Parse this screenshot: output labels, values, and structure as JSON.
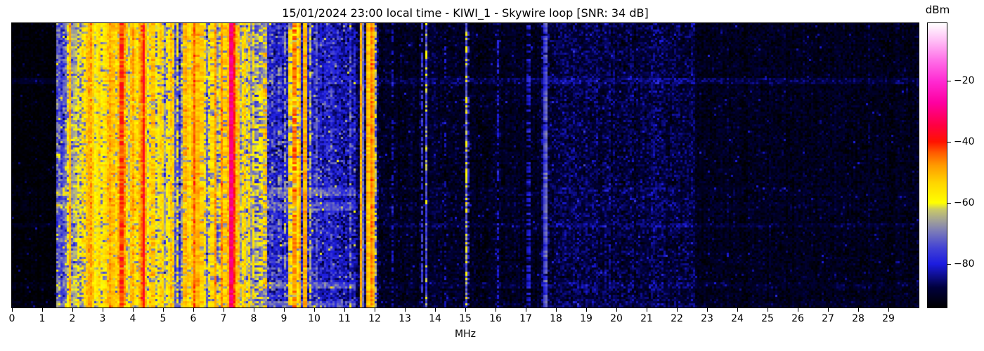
{
  "chart_data": {
    "type": "heatmap",
    "title": "15/01/2024 23:00 local time - KIWI_1 - Skywire loop [SNR: 34 dB]",
    "xlabel": "MHz",
    "x_range": [
      0,
      30
    ],
    "x_ticks": [
      "0",
      "1",
      "2",
      "3",
      "4",
      "5",
      "6",
      "7",
      "8",
      "9",
      "10",
      "11",
      "12",
      "13",
      "14",
      "15",
      "16",
      "17",
      "18",
      "19",
      "20",
      "21",
      "22",
      "23",
      "24",
      "25",
      "26",
      "27",
      "28",
      "29"
    ],
    "x_tick_values": [
      0,
      1,
      2,
      3,
      4,
      5,
      6,
      7,
      8,
      9,
      10,
      11,
      12,
      13,
      14,
      15,
      16,
      17,
      18,
      19,
      20,
      21,
      22,
      23,
      24,
      25,
      26,
      27,
      28,
      29
    ],
    "y_axis": "time (waterfall rows, no labels shown)",
    "value_unit": "dBm",
    "value_range": [
      -94.25,
      -1.15
    ],
    "colorbar": {
      "label": "dBm",
      "tick_labels": [
        "−20",
        "−40",
        "−60",
        "−80"
      ],
      "tick_values": [
        -20,
        -40,
        -60,
        -80
      ],
      "stops": [
        {
          "t": 0.0,
          "c": "#000000"
        },
        {
          "t": 0.07,
          "c": "#00003c"
        },
        {
          "t": 0.153,
          "c": "#1c1cdf"
        },
        {
          "t": 0.21,
          "c": "#4343d4"
        },
        {
          "t": 0.27,
          "c": "#7d7db7"
        },
        {
          "t": 0.31,
          "c": "#a5a593"
        },
        {
          "t": 0.345,
          "c": "#c9c967"
        },
        {
          "t": 0.368,
          "c": "#ffff00"
        },
        {
          "t": 0.44,
          "c": "#ffd400"
        },
        {
          "t": 0.5,
          "c": "#ff9a00"
        },
        {
          "t": 0.545,
          "c": "#ff5a00"
        },
        {
          "t": 0.583,
          "c": "#ff1200"
        },
        {
          "t": 0.64,
          "c": "#ff0041"
        },
        {
          "t": 0.72,
          "c": "#fe00a0"
        },
        {
          "t": 0.796,
          "c": "#ff2ad2"
        },
        {
          "t": 0.87,
          "c": "#ff70e8"
        },
        {
          "t": 0.94,
          "c": "#ffc0f6"
        },
        {
          "t": 1.0,
          "c": "#ffffff"
        }
      ]
    },
    "regions_format": "[f_start_MHz, f_end_MHz, noise_floor_dBm, noise_sigma_dB, column_jitter_dB]",
    "regions": [
      [
        0.0,
        1.45,
        -93.5,
        1.3,
        0.5
      ],
      [
        1.45,
        8.45,
        -77.0,
        5.5,
        2.5
      ],
      [
        8.45,
        10.15,
        -80.0,
        4.0,
        1.5
      ],
      [
        10.15,
        11.4,
        -82.0,
        3.5,
        1.2
      ],
      [
        11.4,
        12.15,
        -86.0,
        3.0,
        1.0
      ],
      [
        12.15,
        17.5,
        -90.5,
        2.2,
        0.7
      ],
      [
        17.5,
        22.6,
        -88.0,
        2.8,
        0.9
      ],
      [
        22.6,
        30.0,
        -91.0,
        2.0,
        0.6
      ]
    ],
    "stripes_format": "[freq_MHz, halfwidth_MHz, peak_dBm, duty_cycle]",
    "stripes": [
      [
        1.5,
        0.02,
        -78,
        0.9
      ],
      [
        1.57,
        0.02,
        -74,
        0.8
      ],
      [
        1.66,
        0.02,
        -80,
        0.8
      ],
      [
        1.75,
        0.02,
        -72,
        0.7
      ],
      [
        1.86,
        0.02,
        -60,
        0.8
      ],
      [
        1.93,
        0.02,
        -50,
        1.0
      ],
      [
        2.02,
        0.02,
        -66,
        0.7
      ],
      [
        2.1,
        0.02,
        -63,
        0.8
      ],
      [
        2.18,
        0.02,
        -58,
        0.7
      ],
      [
        2.27,
        0.02,
        -62,
        0.6
      ],
      [
        2.34,
        0.02,
        -55,
        0.7
      ],
      [
        2.42,
        0.02,
        -56,
        0.7
      ],
      [
        2.5,
        0.03,
        -52,
        0.9
      ],
      [
        2.56,
        0.04,
        -50,
        1.0
      ],
      [
        2.63,
        0.03,
        -48,
        0.9
      ],
      [
        2.7,
        0.03,
        -53,
        0.9
      ],
      [
        2.8,
        0.02,
        -57,
        0.8
      ],
      [
        2.88,
        0.03,
        -54,
        0.9
      ],
      [
        2.97,
        0.02,
        -58,
        0.8
      ],
      [
        3.08,
        0.03,
        -55,
        0.9
      ],
      [
        3.17,
        0.03,
        -52,
        0.9
      ],
      [
        3.26,
        0.04,
        -49,
        1.0
      ],
      [
        3.35,
        0.03,
        -52,
        0.9
      ],
      [
        3.44,
        0.02,
        -55,
        0.8
      ],
      [
        3.55,
        0.02,
        -50,
        0.9
      ],
      [
        3.63,
        0.025,
        -42,
        1.0
      ],
      [
        3.72,
        0.02,
        -47,
        0.9
      ],
      [
        3.82,
        0.02,
        -54,
        0.8
      ],
      [
        3.93,
        0.03,
        -52,
        0.9
      ],
      [
        4.03,
        0.03,
        -49,
        0.9
      ],
      [
        4.13,
        0.02,
        -56,
        0.8
      ],
      [
        4.24,
        0.03,
        -50,
        0.9
      ],
      [
        4.35,
        0.04,
        -39,
        1.0
      ],
      [
        4.45,
        0.02,
        -50,
        0.9
      ],
      [
        4.56,
        0.02,
        -54,
        0.8
      ],
      [
        4.67,
        0.03,
        -52,
        0.9
      ],
      [
        4.78,
        0.02,
        -60,
        0.7
      ],
      [
        4.9,
        0.03,
        -53,
        0.9
      ],
      [
        5.0,
        0.03,
        -55,
        0.8
      ],
      [
        5.12,
        0.02,
        -58,
        0.7
      ],
      [
        5.25,
        0.03,
        -51,
        0.9
      ],
      [
        5.35,
        0.02,
        -54,
        0.8
      ],
      [
        5.48,
        0.02,
        -58,
        0.7
      ],
      [
        5.6,
        0.02,
        -66,
        0.5
      ],
      [
        5.73,
        0.03,
        -50,
        0.9
      ],
      [
        5.85,
        0.03,
        -53,
        0.9
      ],
      [
        5.95,
        0.02,
        -51,
        0.9
      ],
      [
        6.05,
        0.025,
        -44,
        1.0
      ],
      [
        6.15,
        0.04,
        -50,
        1.0
      ],
      [
        6.28,
        0.03,
        -53,
        0.9
      ],
      [
        6.4,
        0.02,
        -56,
        0.8
      ],
      [
        6.52,
        0.02,
        -59,
        0.7
      ],
      [
        6.63,
        0.02,
        -55,
        0.8
      ],
      [
        6.73,
        0.02,
        -48,
        1.0
      ],
      [
        6.85,
        0.02,
        -57,
        0.7
      ],
      [
        6.95,
        0.02,
        -47,
        1.0
      ],
      [
        7.05,
        0.02,
        -53,
        0.8
      ],
      [
        7.16,
        0.03,
        -50,
        0.9
      ],
      [
        7.27,
        0.07,
        -30,
        1.0
      ],
      [
        7.38,
        0.03,
        -46,
        0.9
      ],
      [
        7.5,
        0.03,
        -51,
        0.9
      ],
      [
        7.62,
        0.02,
        -55,
        0.8
      ],
      [
        7.73,
        0.02,
        -53,
        0.8
      ],
      [
        7.85,
        0.03,
        -54,
        0.8
      ],
      [
        7.97,
        0.02,
        -56,
        0.7
      ],
      [
        8.1,
        0.02,
        -62,
        0.6
      ],
      [
        8.24,
        0.02,
        -56,
        0.55
      ],
      [
        8.38,
        0.02,
        -51,
        0.5
      ],
      [
        8.6,
        0.02,
        -70,
        0.4
      ],
      [
        8.85,
        0.02,
        -68,
        0.4
      ],
      [
        9.05,
        0.02,
        -66,
        0.5
      ],
      [
        9.2,
        0.02,
        -54,
        0.8
      ],
      [
        9.35,
        0.025,
        -46,
        0.9
      ],
      [
        9.5,
        0.02,
        -50,
        0.9
      ],
      [
        9.7,
        0.05,
        -50,
        1.0
      ],
      [
        9.88,
        0.02,
        -64,
        0.7
      ],
      [
        10.08,
        0.02,
        -72,
        0.7
      ],
      [
        10.55,
        0.02,
        -75,
        0.5
      ],
      [
        11.2,
        0.02,
        -70,
        0.4
      ],
      [
        11.55,
        0.03,
        -50,
        1.0
      ],
      [
        11.78,
        0.03,
        -50,
        1.0
      ],
      [
        11.92,
        0.02,
        -46,
        1.0
      ],
      [
        12.02,
        0.02,
        -63,
        0.6
      ],
      [
        12.6,
        0.02,
        -82,
        0.5
      ],
      [
        13.57,
        0.02,
        -76,
        0.6
      ],
      [
        13.72,
        0.02,
        -62,
        0.35
      ],
      [
        14.35,
        0.02,
        -84,
        0.4
      ],
      [
        15.05,
        0.02,
        -60,
        0.4
      ],
      [
        16.1,
        0.02,
        -81,
        0.5
      ],
      [
        17.1,
        0.02,
        -80,
        0.5
      ],
      [
        17.66,
        0.02,
        -72,
        0.95
      ],
      [
        19.8,
        0.02,
        -85,
        0.3
      ],
      [
        21.46,
        0.02,
        -84,
        0.3
      ]
    ],
    "horizontal_streaks_format": "[row_frac_start, row_frac_end, boost_dB_in_active_band, boost_dB_in_dark_band]",
    "horizontal_streaks": [
      [
        0.195,
        0.215,
        2.0,
        3.5
      ],
      [
        0.578,
        0.606,
        8.0,
        1.0
      ],
      [
        0.633,
        0.657,
        7.0,
        1.0
      ],
      [
        0.703,
        0.722,
        0.0,
        2.5
      ],
      [
        0.912,
        0.937,
        8.0,
        1.5
      ],
      [
        0.975,
        1.0,
        7.0,
        1.0
      ]
    ],
    "legend_position": "colorbar right",
    "grid": false
  }
}
